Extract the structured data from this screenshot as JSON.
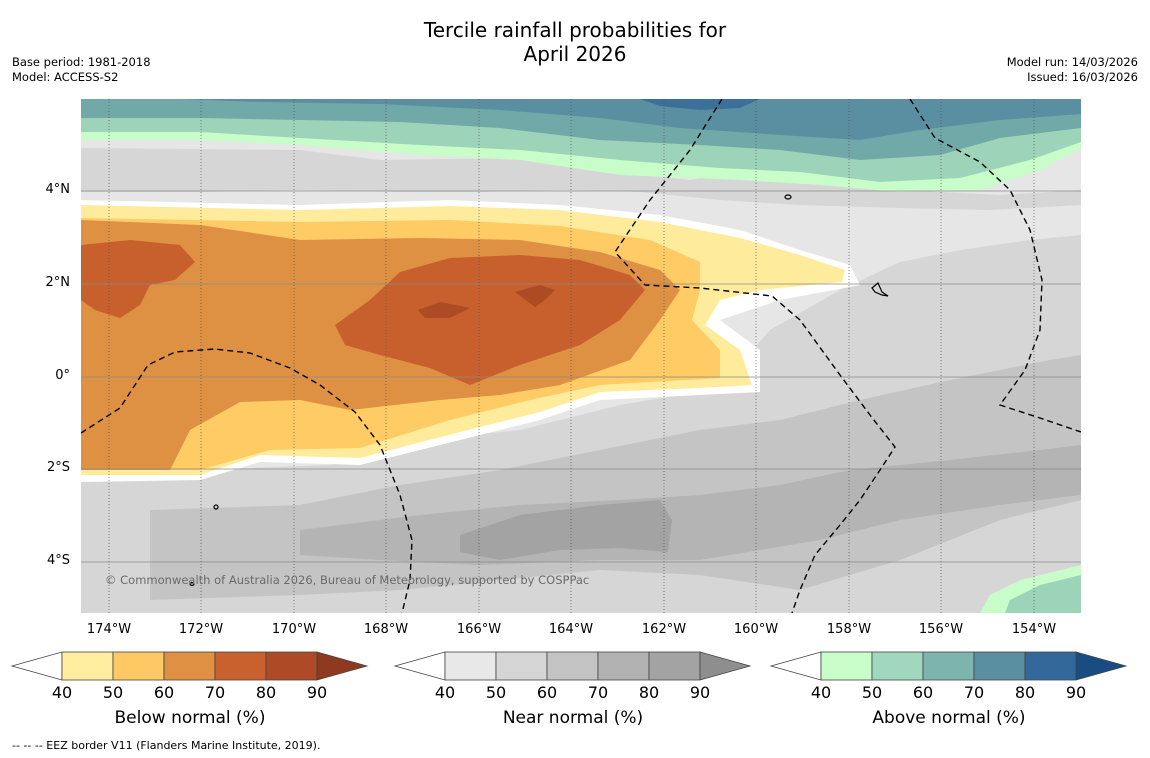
{
  "header": {
    "title_line1": "Tercile rainfall probabilities for",
    "title_line2": "April 2026",
    "base_period": "Base period: 1981-2018",
    "model": "Model: ACCESS-S2",
    "model_run": "Model run: 14/03/2026",
    "issued": "Issued: 16/03/2026"
  },
  "map": {
    "lat_labels": [
      "4°N",
      "2°N",
      "0°",
      "2°S",
      "4°S"
    ],
    "lon_labels": [
      "174°W",
      "172°W",
      "170°W",
      "168°W",
      "166°W",
      "164°W",
      "162°W",
      "160°W",
      "158°W",
      "156°W",
      "154°W"
    ],
    "copyright": "© Commonwealth of Australia 2026, Bureau of Meteorology, supported by COSPPac",
    "colors": {
      "background_near": "#e6e6e6",
      "near_50": "#d6d6d6",
      "near_60": "#c4c4c4",
      "near_70": "#b4b4b4",
      "near_80": "#a3a3a3",
      "below_40": "#ffeb9c",
      "below_50": "#fecb65",
      "below_60": "#df9143",
      "below_70": "#c8602d",
      "below_80": "#ad4b25",
      "above_40": "#c8fcc8",
      "above_50": "#9dd4b9",
      "above_60": "#71a9a8",
      "above_70": "#5a8fa1",
      "above_80": "#3c6f99"
    }
  },
  "colorbars": [
    {
      "label": "Below normal (%)",
      "ticks": [
        "40",
        "50",
        "60",
        "70",
        "80",
        "90"
      ],
      "colors": [
        "#ffeda0",
        "#fec864",
        "#df9043",
        "#c9612f",
        "#ae4b26",
        "#8f3a1f"
      ]
    },
    {
      "label": "Near normal (%)",
      "ticks": [
        "40",
        "50",
        "60",
        "70",
        "80",
        "90"
      ],
      "colors": [
        "#e8e8e8",
        "#d5d5d5",
        "#c3c3c3",
        "#b2b2b2",
        "#a3a3a3",
        "#8e8e8e"
      ]
    },
    {
      "label": "Above normal (%)",
      "ticks": [
        "40",
        "50",
        "60",
        "70",
        "80",
        "90"
      ],
      "colors": [
        "#c8fcc8",
        "#a2d7bf",
        "#7eb4ae",
        "#5a8fa1",
        "#33689a",
        "#1a4c84"
      ]
    }
  ],
  "footnote": "--  --  -- EEZ border V11 (Flanders Marine Institute, 2019)."
}
